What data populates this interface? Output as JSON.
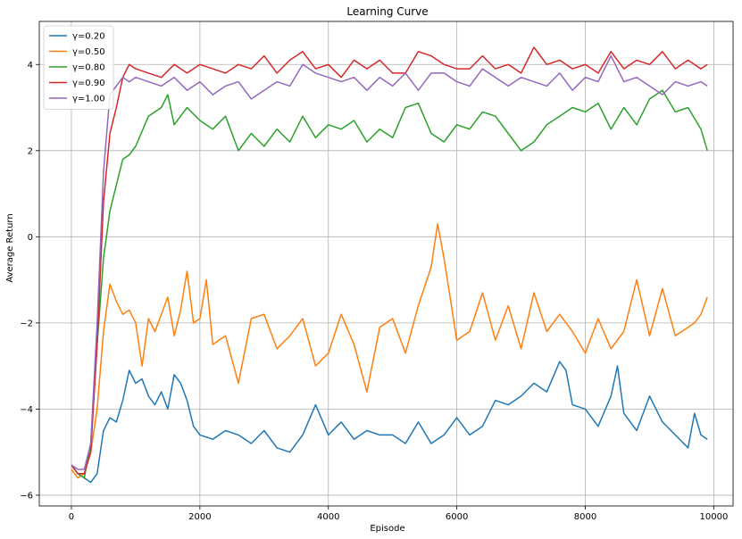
{
  "chart_data": {
    "type": "line",
    "title": "Learning Curve",
    "xlabel": "Episode",
    "ylabel": "Average Return",
    "xlim": [
      -500,
      10300
    ],
    "ylim": [
      -6.25,
      5.0
    ],
    "xticks": [
      0,
      2000,
      4000,
      6000,
      8000,
      10000
    ],
    "yticks": [
      -6,
      -4,
      -2,
      0,
      2,
      4
    ],
    "grid": true,
    "legend_position": "top-left",
    "series": [
      {
        "name": "γ=0.20",
        "color": "#1f77b4",
        "x": [
          0,
          100,
          200,
          300,
          400,
          500,
          600,
          700,
          800,
          900,
          1000,
          1100,
          1200,
          1300,
          1400,
          1500,
          1600,
          1700,
          1800,
          1900,
          2000,
          2200,
          2400,
          2600,
          2800,
          3000,
          3200,
          3400,
          3600,
          3800,
          4000,
          4200,
          4400,
          4600,
          4800,
          5000,
          5200,
          5400,
          5600,
          5800,
          6000,
          6200,
          6400,
          6600,
          6800,
          7000,
          7200,
          7400,
          7600,
          7700,
          7800,
          8000,
          8200,
          8400,
          8500,
          8600,
          8800,
          9000,
          9200,
          9400,
          9600,
          9700,
          9800,
          9900
        ],
        "y": [
          -5.3,
          -5.5,
          -5.6,
          -5.7,
          -5.5,
          -4.5,
          -4.2,
          -4.3,
          -3.8,
          -3.1,
          -3.4,
          -3.3,
          -3.7,
          -3.9,
          -3.6,
          -4.0,
          -3.2,
          -3.4,
          -3.8,
          -4.4,
          -4.6,
          -4.7,
          -4.5,
          -4.6,
          -4.8,
          -4.5,
          -4.9,
          -5.0,
          -4.6,
          -3.9,
          -4.6,
          -4.3,
          -4.7,
          -4.5,
          -4.6,
          -4.6,
          -4.8,
          -4.3,
          -4.8,
          -4.6,
          -4.2,
          -4.6,
          -4.4,
          -3.8,
          -3.9,
          -3.7,
          -3.4,
          -3.6,
          -2.9,
          -3.1,
          -3.9,
          -4.0,
          -4.4,
          -3.7,
          -3.0,
          -4.1,
          -4.5,
          -3.7,
          -4.3,
          -4.6,
          -4.9,
          -4.1,
          -4.6,
          -4.7
        ]
      },
      {
        "name": "γ=0.50",
        "color": "#ff7f0e",
        "x": [
          0,
          100,
          200,
          300,
          400,
          500,
          600,
          700,
          800,
          900,
          1000,
          1100,
          1200,
          1300,
          1400,
          1500,
          1600,
          1700,
          1800,
          1900,
          2000,
          2100,
          2200,
          2400,
          2600,
          2800,
          3000,
          3200,
          3400,
          3600,
          3800,
          4000,
          4200,
          4400,
          4600,
          4800,
          5000,
          5200,
          5400,
          5600,
          5700,
          5800,
          6000,
          6200,
          6400,
          6600,
          6800,
          7000,
          7200,
          7400,
          7600,
          7800,
          8000,
          8200,
          8400,
          8600,
          8800,
          9000,
          9200,
          9400,
          9600,
          9700,
          9800,
          9900
        ],
        "y": [
          -5.4,
          -5.6,
          -5.5,
          -5.0,
          -4.0,
          -2.2,
          -1.1,
          -1.5,
          -1.8,
          -1.7,
          -2.0,
          -3.0,
          -1.9,
          -2.2,
          -1.8,
          -1.4,
          -2.3,
          -1.7,
          -0.8,
          -2.0,
          -1.9,
          -1.0,
          -2.5,
          -2.3,
          -3.4,
          -1.9,
          -1.8,
          -2.6,
          -2.3,
          -1.9,
          -3.0,
          -2.7,
          -1.8,
          -2.5,
          -3.6,
          -2.1,
          -1.9,
          -2.7,
          -1.6,
          -0.7,
          0.3,
          -0.5,
          -2.4,
          -2.2,
          -1.3,
          -2.4,
          -1.6,
          -2.6,
          -1.3,
          -2.2,
          -1.8,
          -2.2,
          -2.7,
          -1.9,
          -2.6,
          -2.2,
          -1.0,
          -2.3,
          -1.2,
          -2.3,
          -2.1,
          -2.0,
          -1.8,
          -1.4
        ]
      },
      {
        "name": "γ=0.80",
        "color": "#2ca02c",
        "x": [
          0,
          100,
          200,
          300,
          400,
          500,
          600,
          700,
          800,
          900,
          1000,
          1200,
          1400,
          1500,
          1600,
          1800,
          2000,
          2200,
          2400,
          2600,
          2800,
          3000,
          3200,
          3400,
          3600,
          3800,
          4000,
          4200,
          4400,
          4600,
          4800,
          5000,
          5200,
          5400,
          5600,
          5800,
          6000,
          6200,
          6400,
          6600,
          6800,
          7000,
          7200,
          7400,
          7600,
          7800,
          8000,
          8200,
          8400,
          8600,
          8800,
          9000,
          9200,
          9400,
          9600,
          9800,
          9900
        ],
        "y": [
          -5.3,
          -5.5,
          -5.6,
          -4.8,
          -2.5,
          -0.5,
          0.6,
          1.2,
          1.8,
          1.9,
          2.1,
          2.8,
          3.0,
          3.3,
          2.6,
          3.0,
          2.7,
          2.5,
          2.8,
          2.0,
          2.4,
          2.1,
          2.5,
          2.2,
          2.8,
          2.3,
          2.6,
          2.5,
          2.7,
          2.2,
          2.5,
          2.3,
          3.0,
          3.1,
          2.4,
          2.2,
          2.6,
          2.5,
          2.9,
          2.8,
          2.4,
          2.0,
          2.2,
          2.6,
          2.8,
          3.0,
          2.9,
          3.1,
          2.5,
          3.0,
          2.6,
          3.2,
          3.4,
          2.9,
          3.0,
          2.5,
          2.0
        ]
      },
      {
        "name": "γ=0.90",
        "color": "#d62728",
        "x": [
          0,
          100,
          200,
          300,
          400,
          500,
          600,
          700,
          800,
          900,
          1000,
          1200,
          1400,
          1600,
          1800,
          2000,
          2200,
          2400,
          2600,
          2800,
          3000,
          3200,
          3400,
          3600,
          3800,
          4000,
          4200,
          4400,
          4600,
          4800,
          5000,
          5200,
          5400,
          5600,
          5800,
          6000,
          6200,
          6400,
          6600,
          6800,
          7000,
          7200,
          7400,
          7600,
          7800,
          8000,
          8200,
          8400,
          8600,
          8800,
          9000,
          9200,
          9400,
          9600,
          9800,
          9900
        ],
        "y": [
          -5.3,
          -5.5,
          -5.5,
          -5.0,
          -2.5,
          0.8,
          2.4,
          3.0,
          3.7,
          4.0,
          3.9,
          3.8,
          3.7,
          4.0,
          3.8,
          4.0,
          3.9,
          3.8,
          4.0,
          3.9,
          4.2,
          3.8,
          4.1,
          4.3,
          3.9,
          4.0,
          3.7,
          4.1,
          3.9,
          4.1,
          3.8,
          3.8,
          4.3,
          4.2,
          4.0,
          3.9,
          3.9,
          4.2,
          3.9,
          4.0,
          3.8,
          4.4,
          4.0,
          4.1,
          3.9,
          4.0,
          3.8,
          4.3,
          3.9,
          4.1,
          4.0,
          4.3,
          3.9,
          4.1,
          3.9,
          4.0
        ]
      },
      {
        "name": "γ=1.00",
        "color": "#9467bd",
        "x": [
          0,
          100,
          200,
          300,
          400,
          500,
          600,
          700,
          800,
          900,
          1000,
          1200,
          1400,
          1600,
          1800,
          2000,
          2200,
          2400,
          2600,
          2800,
          3000,
          3200,
          3400,
          3600,
          3800,
          4000,
          4200,
          4400,
          4600,
          4800,
          5000,
          5200,
          5400,
          5600,
          5800,
          6000,
          6200,
          6400,
          6600,
          6800,
          7000,
          7200,
          7400,
          7600,
          7800,
          8000,
          8200,
          8400,
          8600,
          8800,
          9000,
          9200,
          9400,
          9600,
          9800,
          9900
        ],
        "y": [
          -5.3,
          -5.4,
          -5.4,
          -4.8,
          -2.0,
          1.5,
          3.3,
          3.5,
          3.7,
          3.6,
          3.7,
          3.6,
          3.5,
          3.7,
          3.4,
          3.6,
          3.3,
          3.5,
          3.6,
          3.2,
          3.4,
          3.6,
          3.5,
          4.0,
          3.8,
          3.7,
          3.6,
          3.7,
          3.4,
          3.7,
          3.5,
          3.8,
          3.4,
          3.8,
          3.8,
          3.6,
          3.5,
          3.9,
          3.7,
          3.5,
          3.7,
          3.6,
          3.5,
          3.8,
          3.4,
          3.7,
          3.6,
          4.2,
          3.6,
          3.7,
          3.5,
          3.3,
          3.6,
          3.5,
          3.6,
          3.5
        ]
      }
    ]
  }
}
